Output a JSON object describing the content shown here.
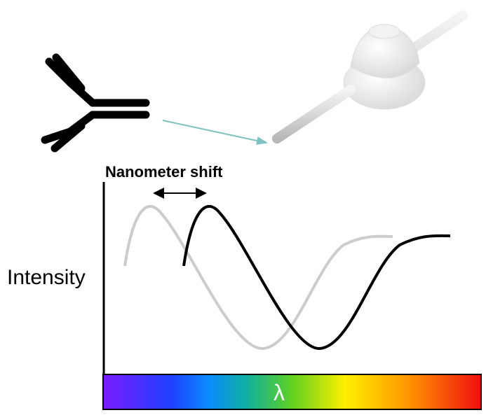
{
  "labels": {
    "shift": "Nanometer shift",
    "y_axis": "Intensity",
    "spectrum": "λ"
  }
}
